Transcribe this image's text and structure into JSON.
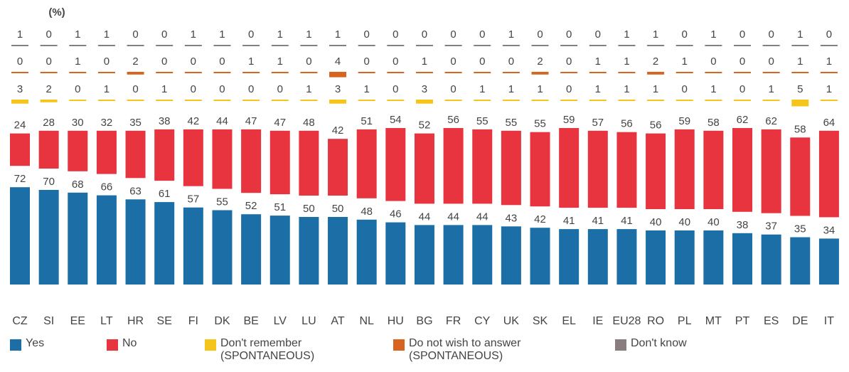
{
  "chart_data": {
    "type": "bar",
    "title": "(%)",
    "categories": [
      "CZ",
      "SI",
      "EE",
      "LT",
      "HR",
      "SE",
      "FI",
      "DK",
      "BE",
      "LV",
      "LU",
      "AT",
      "NL",
      "HU",
      "BG",
      "FR",
      "CY",
      "UK",
      "SK",
      "EL",
      "IE",
      "EU28",
      "RO",
      "PL",
      "MT",
      "PT",
      "ES",
      "DE",
      "IT"
    ],
    "series": [
      {
        "name": "Yes",
        "color": "#1b6fa6",
        "values": [
          72,
          70,
          68,
          66,
          63,
          61,
          57,
          55,
          52,
          51,
          50,
          50,
          48,
          46,
          44,
          44,
          44,
          43,
          42,
          41,
          41,
          41,
          40,
          40,
          40,
          38,
          37,
          35,
          34
        ]
      },
      {
        "name": "No",
        "color": "#e8343f",
        "values": [
          24,
          28,
          30,
          32,
          35,
          38,
          42,
          44,
          47,
          47,
          48,
          42,
          51,
          54,
          52,
          56,
          55,
          55,
          55,
          59,
          57,
          56,
          56,
          59,
          58,
          62,
          62,
          58,
          64
        ]
      },
      {
        "name": "Don't remember (SPONTANEOUS)",
        "color": "#f6c51b",
        "values": [
          3,
          2,
          0,
          1,
          0,
          1,
          0,
          0,
          0,
          0,
          1,
          3,
          1,
          0,
          3,
          0,
          1,
          1,
          1,
          0,
          1,
          1,
          1,
          0,
          1,
          0,
          1,
          5,
          1
        ]
      },
      {
        "name": "Do not wish to answer (SPONTANEOUS)",
        "color": "#d8641f",
        "values": [
          0,
          0,
          1,
          0,
          2,
          0,
          0,
          0,
          1,
          1,
          0,
          4,
          0,
          0,
          1,
          0,
          0,
          0,
          2,
          0,
          1,
          1,
          2,
          1,
          0,
          0,
          0,
          1,
          1
        ]
      },
      {
        "name": "Don't know",
        "color": "#8a7d80",
        "values": [
          1,
          0,
          1,
          1,
          0,
          0,
          1,
          1,
          0,
          1,
          1,
          1,
          0,
          0,
          0,
          0,
          0,
          1,
          0,
          0,
          0,
          1,
          1,
          0,
          1,
          0,
          0,
          1,
          0
        ]
      }
    ]
  }
}
